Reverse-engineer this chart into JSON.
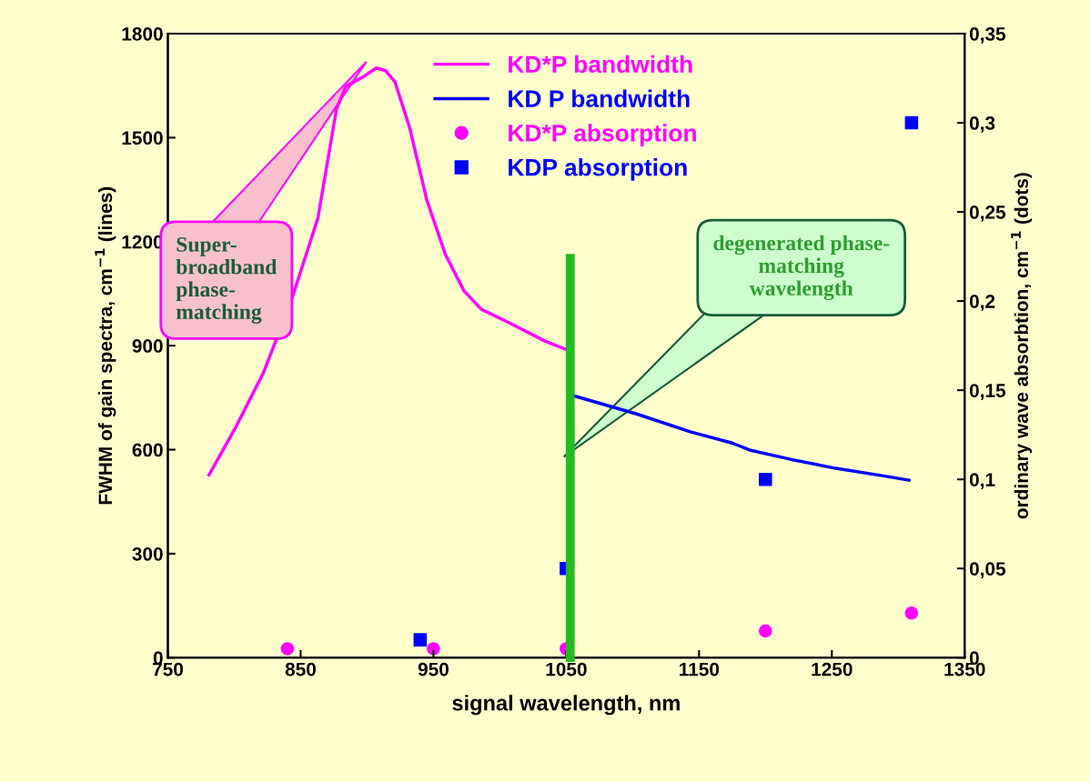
{
  "chart_data": {
    "type": "line",
    "xlabel": "signal wavelength, nm",
    "ylabel": "FWHM of gain spectra, cm$^{−1}$ (lines)",
    "y2label": "ordinary wave absorbtion, cm$^{−1}$ (dots)",
    "xlim": [
      750,
      1350
    ],
    "xticks": [
      750,
      850,
      950,
      1050,
      1150,
      1250,
      1350
    ],
    "ylim": [
      0,
      1800
    ],
    "yticks": [
      0,
      300,
      600,
      900,
      1200,
      1500,
      1800
    ],
    "y2lim": [
      0,
      0.35
    ],
    "y2ticks": [
      {
        "value": 0,
        "label": "0"
      },
      {
        "value": 0.05,
        "label": "0,05"
      },
      {
        "value": 0.1,
        "label": "0,1"
      },
      {
        "value": 0.15,
        "label": "0,15"
      },
      {
        "value": 0.2,
        "label": "0,2"
      },
      {
        "value": 0.25,
        "label": "0,25"
      },
      {
        "value": 0.3,
        "label": "0,3"
      },
      {
        "value": 0.35,
        "label": "0,35"
      }
    ],
    "tick_labels": "xy",
    "grid": false,
    "legend": "top",
    "series": [
      {
        "name": "KD*P bandwidth",
        "color": "#ff00ff",
        "marker": "none",
        "x": [
          781,
          801,
          822,
          843,
          863,
          877,
          884,
          897,
          907,
          914,
          921,
          932,
          945,
          959,
          973,
          986,
          1007,
          1034,
          1051
        ],
        "values": [
          527,
          664,
          822,
          1031,
          1268,
          1583,
          1648,
          1675,
          1701,
          1693,
          1661,
          1530,
          1320,
          1163,
          1058,
          1005,
          966,
          913,
          887
        ]
      },
      {
        "name": "KD P bandwidth",
        "color": "#0000ff",
        "marker": "none",
        "x": [
          1055,
          1103,
          1144,
          1175,
          1189,
          1219,
          1253,
          1288,
          1308
        ],
        "values": [
          756,
          703,
          651,
          619,
          598,
          572,
          546,
          525,
          512
        ]
      },
      {
        "name": "KD*P absorption",
        "type": "scatter",
        "axis": "y2",
        "color": "#ff00ff",
        "marker": "circle",
        "x": [
          840,
          950,
          1050,
          1200,
          1310
        ],
        "values": [
          0.005,
          0.005,
          0.005,
          0.015,
          0.025
        ]
      },
      {
        "name": "KDP absorption",
        "type": "scatter",
        "axis": "y2",
        "color": "#0000ff",
        "marker": "square",
        "x": [
          940,
          1050,
          1200,
          1310
        ],
        "values": [
          0.01,
          0.05,
          0.1,
          0.3
        ]
      }
    ],
    "ref_lines": [
      {
        "axis": "x",
        "value": 1053,
        "color": "#22bb22"
      }
    ],
    "annotations": [
      "Super-\nbroadband\nphase-\nmatching",
      "degenerated phase-\nmatching\nwavelength"
    ]
  }
}
